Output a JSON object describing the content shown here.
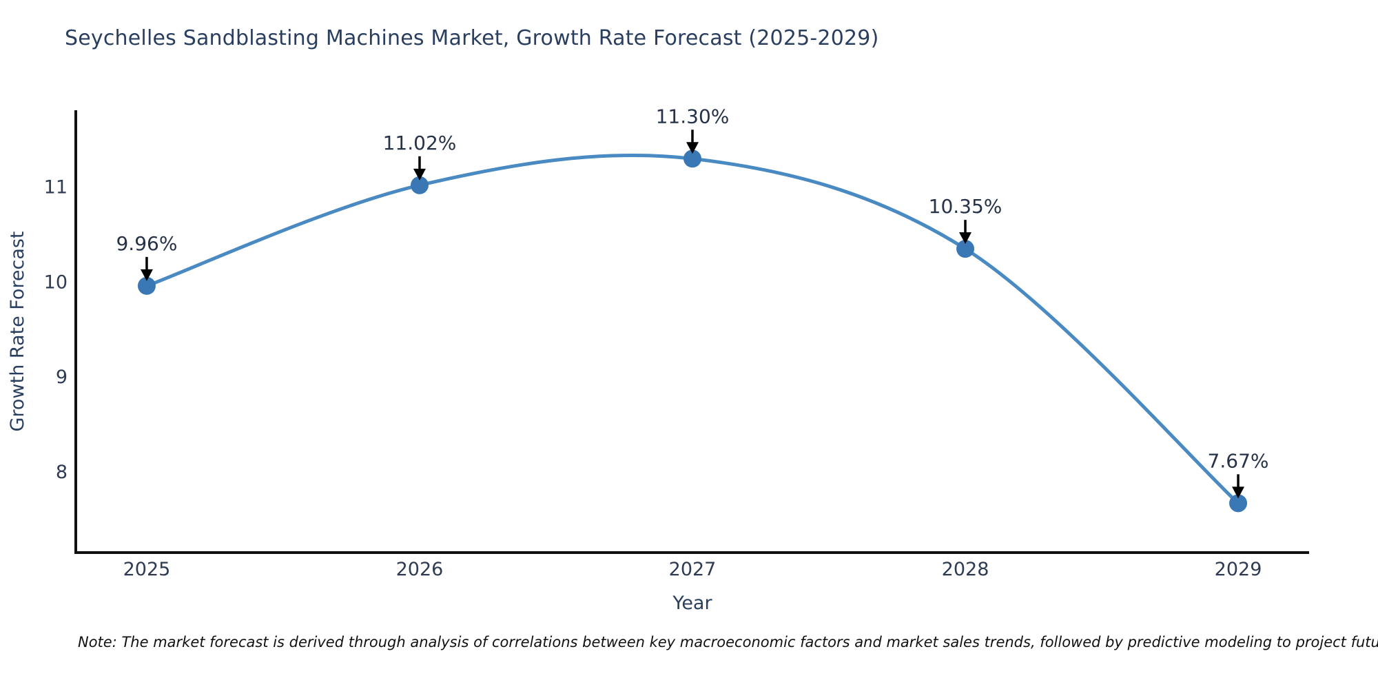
{
  "title": "Seychelles Sandblasting Machines Market, Growth Rate Forecast (2025-2029)",
  "note": "Note: The market forecast is derived through analysis of correlations between key macroeconomic factors and market sales trends, followed by predictive modeling to project future sales.",
  "colors": {
    "line": "#4a8ac2",
    "marker": "#3a78b5",
    "axis_spine": "#111111",
    "annotation_arrow": "#000000",
    "title_text": "#2a3f5f",
    "tick_text": "#2f3b52",
    "note_text": "#111111",
    "background": "#ffffff"
  },
  "chart_data": {
    "type": "line",
    "line_shape": "spline",
    "title": "Seychelles Sandblasting Machines Market, Growth Rate Forecast (2025-2029)",
    "x": [
      2025,
      2026,
      2027,
      2028,
      2029
    ],
    "x_tick_labels": [
      "2025",
      "2026",
      "2027",
      "2028",
      "2029"
    ],
    "values": [
      9.96,
      11.02,
      11.3,
      10.35,
      7.67
    ],
    "point_labels": [
      "9.96%",
      "11.02%",
      "11.30%",
      "10.35%",
      "7.67%"
    ],
    "xlabel": "Year",
    "ylabel": "Growth Rate Forecast",
    "yticks": [
      8,
      9,
      10,
      11
    ],
    "ylim": [
      7.15,
      11.81
    ],
    "xlim": [
      2024.74,
      2029.26
    ],
    "grid": false,
    "legend": false,
    "annotation_style": "value label with downward black arrow above each marker"
  }
}
